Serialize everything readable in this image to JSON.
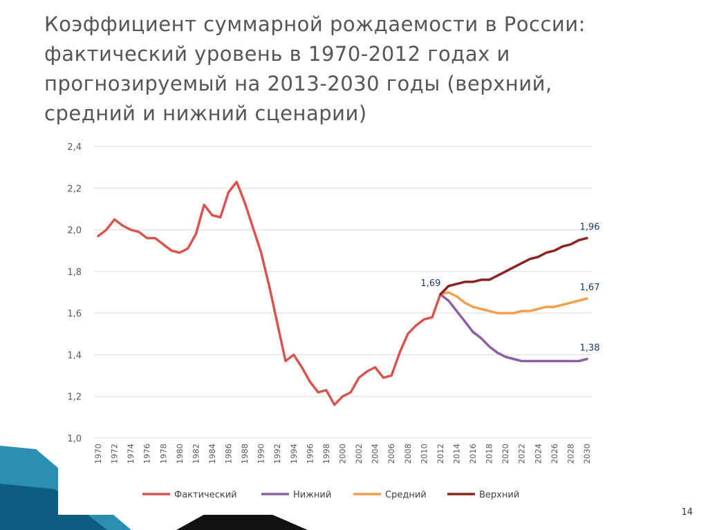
{
  "slide": {
    "title_lines": [
      "Коэффициент суммарной рождаемости в России:",
      "фактический уровень в 1970-2012 годах и",
      "прогнозируемый на 2013-2030 годы (верхний,",
      "средний и нижний сценарии)"
    ],
    "page_number": "14",
    "colors": {
      "background": "#ffffff",
      "accent_band": "#2b8fb3",
      "accent_dark": "#0c5d80"
    }
  },
  "chart_data": {
    "type": "line",
    "title": "",
    "xlabel": "",
    "ylabel": "",
    "ylim": [
      1.0,
      2.4
    ],
    "yticks": [
      "1,0",
      "1,2",
      "1,4",
      "1,6",
      "1,8",
      "2,0",
      "2,2",
      "2,4"
    ],
    "xlim": [
      1970,
      2030
    ],
    "xticks": [
      "1970",
      "1972",
      "1974",
      "1976",
      "1978",
      "1980",
      "1982",
      "1984",
      "1986",
      "1988",
      "1990",
      "1992",
      "1994",
      "1996",
      "1998",
      "2000",
      "2002",
      "2004",
      "2006",
      "2008",
      "2010",
      "2012",
      "2014",
      "2016",
      "2018",
      "2020",
      "2022",
      "2024",
      "2026",
      "2028",
      "2030"
    ],
    "grid": true,
    "legend_position": "bottom",
    "series": [
      {
        "name": "Фактический",
        "color": "#d9534f",
        "x": [
          1970,
          1971,
          1972,
          1973,
          1974,
          1975,
          1976,
          1977,
          1978,
          1979,
          1980,
          1981,
          1982,
          1983,
          1984,
          1985,
          1986,
          1987,
          1988,
          1989,
          1990,
          1991,
          1992,
          1993,
          1994,
          1995,
          1996,
          1997,
          1998,
          1999,
          2000,
          2001,
          2002,
          2003,
          2004,
          2005,
          2006,
          2007,
          2008,
          2009,
          2010,
          2011,
          2012
        ],
        "y": [
          1.97,
          2.0,
          2.05,
          2.02,
          2.0,
          1.99,
          1.96,
          1.96,
          1.93,
          1.9,
          1.89,
          1.91,
          1.98,
          2.12,
          2.07,
          2.06,
          2.18,
          2.23,
          2.13,
          2.01,
          1.89,
          1.73,
          1.55,
          1.37,
          1.4,
          1.34,
          1.27,
          1.22,
          1.23,
          1.16,
          1.2,
          1.22,
          1.29,
          1.32,
          1.34,
          1.29,
          1.3,
          1.41,
          1.5,
          1.54,
          1.57,
          1.58,
          1.69
        ]
      },
      {
        "name": "Нижний",
        "color": "#8e5ea2",
        "x": [
          2012,
          2013,
          2014,
          2015,
          2016,
          2017,
          2018,
          2019,
          2020,
          2021,
          2022,
          2023,
          2024,
          2025,
          2026,
          2027,
          2028,
          2029,
          2030
        ],
        "y": [
          1.69,
          1.66,
          1.61,
          1.56,
          1.51,
          1.48,
          1.44,
          1.41,
          1.39,
          1.38,
          1.37,
          1.37,
          1.37,
          1.37,
          1.37,
          1.37,
          1.37,
          1.37,
          1.38
        ]
      },
      {
        "name": "Средний",
        "color": "#f0a04b",
        "x": [
          2012,
          2013,
          2014,
          2015,
          2016,
          2017,
          2018,
          2019,
          2020,
          2021,
          2022,
          2023,
          2024,
          2025,
          2026,
          2027,
          2028,
          2029,
          2030
        ],
        "y": [
          1.69,
          1.7,
          1.68,
          1.65,
          1.63,
          1.62,
          1.61,
          1.6,
          1.6,
          1.6,
          1.61,
          1.61,
          1.62,
          1.63,
          1.63,
          1.64,
          1.65,
          1.66,
          1.67
        ]
      },
      {
        "name": "Верхний",
        "color": "#8b2323",
        "x": [
          2012,
          2013,
          2014,
          2015,
          2016,
          2017,
          2018,
          2019,
          2020,
          2021,
          2022,
          2023,
          2024,
          2025,
          2026,
          2027,
          2028,
          2029,
          2030
        ],
        "y": [
          1.69,
          1.73,
          1.74,
          1.75,
          1.75,
          1.76,
          1.76,
          1.78,
          1.8,
          1.82,
          1.84,
          1.86,
          1.87,
          1.89,
          1.9,
          1.92,
          1.93,
          1.95,
          1.96
        ]
      }
    ],
    "annotations": [
      {
        "text": "1,69",
        "x": 2012,
        "y": 1.69
      },
      {
        "text": "1,96",
        "x": 2030,
        "y": 1.96
      },
      {
        "text": "1,67",
        "x": 2030,
        "y": 1.67
      },
      {
        "text": "1,38",
        "x": 2030,
        "y": 1.38
      }
    ]
  }
}
